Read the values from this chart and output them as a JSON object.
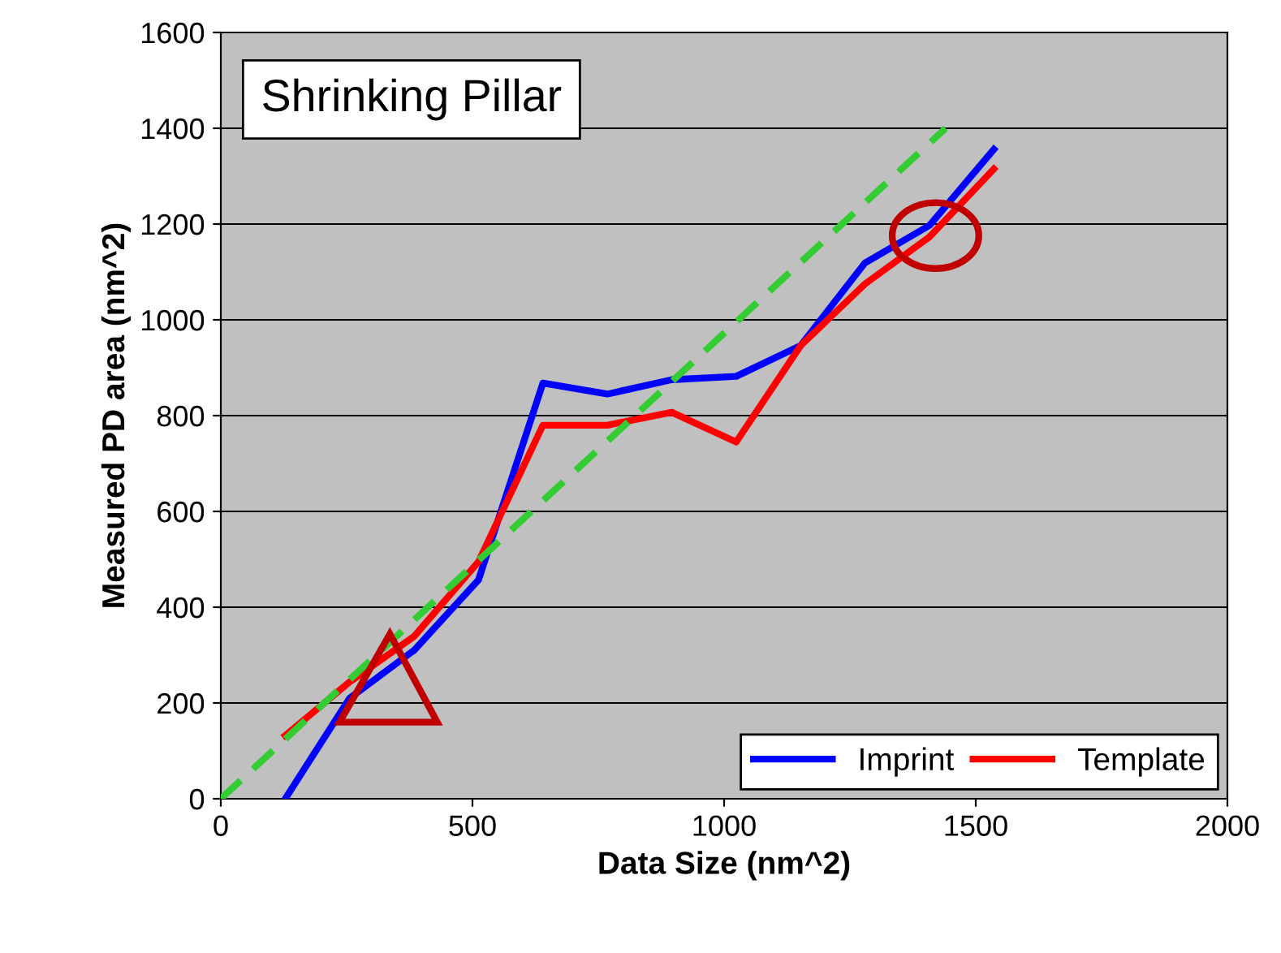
{
  "chart_data": {
    "type": "line",
    "title": "Shrinking Pillar",
    "xlabel": "Data Size (nm^2)",
    "ylabel": "Measured PD area (nm^2)",
    "x": [
      128,
      256,
      384,
      512,
      640,
      768,
      896,
      1024,
      1152,
      1280,
      1408,
      1536
    ],
    "series": [
      {
        "name": "Imprint",
        "color": "#0000ff",
        "values": [
          0,
          210,
          310,
          457,
          868,
          845,
          875,
          882,
          946,
          1119,
          1197,
          1356
        ]
      },
      {
        "name": "Template",
        "color": "#ff0000",
        "values": [
          132,
          244,
          339,
          495,
          780,
          780,
          807,
          745,
          946,
          1075,
          1173,
          1315
        ]
      },
      {
        "color": "#33cc33",
        "x": [
          0,
          1440
        ],
        "values": [
          0,
          1400
        ],
        "line_style": "dashed"
      }
    ],
    "xlim": [
      0,
      2000
    ],
    "ylim": [
      0,
      1600
    ],
    "xticks": [
      0,
      500,
      1000,
      1500,
      2000
    ],
    "yticks": [
      0,
      200,
      400,
      600,
      800,
      1000,
      1200,
      1400,
      1600
    ],
    "grid": "y",
    "legend": "bottom right",
    "marker": "none",
    "line_style": "solid"
  }
}
